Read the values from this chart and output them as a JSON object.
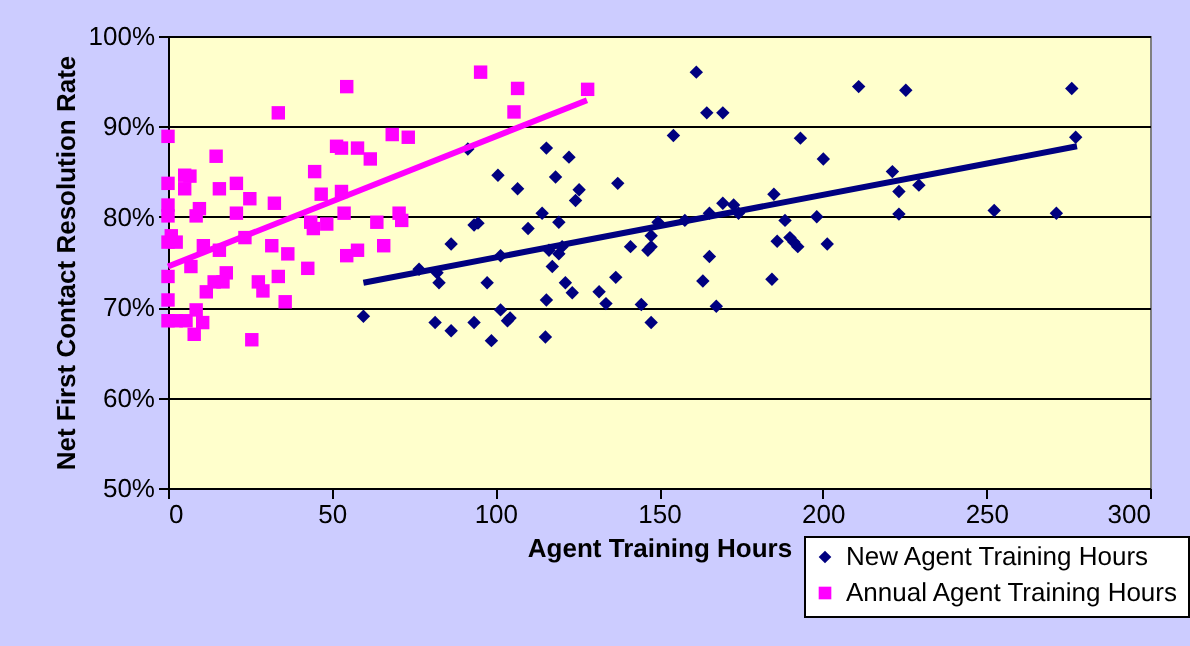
{
  "chart_data": {
    "type": "scatter",
    "xlabel": "Agent Training Hours",
    "ylabel": "Net First Contact Resolution Rate",
    "xlim": [
      0,
      300
    ],
    "xticks": [
      0,
      50,
      100,
      150,
      200,
      250,
      300
    ],
    "ylim": [
      50,
      100
    ],
    "yticks": [
      {
        "value": 50,
        "label": "50%"
      },
      {
        "value": 60,
        "label": "60%"
      },
      {
        "value": 70,
        "label": "70%"
      },
      {
        "value": 80,
        "label": "80%"
      },
      {
        "value": 90,
        "label": "90%"
      },
      {
        "value": 100,
        "label": "100%"
      }
    ],
    "grid": "y",
    "legend": "bottom right",
    "series": [
      {
        "name": "New Agent Training Hours",
        "color": "#000080",
        "marker": "diamond",
        "x": [
          59.7,
          76.7,
          82.2,
          82.8,
          81.6,
          86.5,
          86.5,
          93.5,
          94.7,
          91.6,
          93.5,
          98.8,
          97.5,
          100.8,
          101.6,
          103.7,
          104.5,
          106.8,
          101.6,
          110,
          114.3,
          115.6,
          118.4,
          122.5,
          119.4,
          125.6,
          124.5,
          116.4,
          119.4,
          120.4,
          117.4,
          121.4,
          123.5,
          115.6,
          115.3,
          131.7,
          133.8,
          136.8,
          137.4,
          141.3,
          144.6,
          147.6,
          146.6,
          147.6,
          147.6,
          149.7,
          154.4,
          157.9,
          161.4,
          163.4,
          165.4,
          164.6,
          169.5,
          167.5,
          165.4,
          169.5,
          172.8,
          174.3,
          184.5,
          185.1,
          188.5,
          186.1,
          190,
          191.2,
          192.4,
          193.2,
          198.2,
          200.2,
          201.4,
          211,
          225.4,
          221.3,
          223.3,
          223.3,
          229.4,
          252.4,
          271.4,
          276.1,
          277.3
        ],
        "values": [
          69.0,
          74.2,
          73.8,
          72.7,
          68.3,
          67.4,
          77.0,
          79.1,
          79.3,
          87.5,
          68.3,
          66.3,
          72.7,
          84.6,
          69.7,
          68.5,
          68.8,
          83.1,
          75.7,
          78.7,
          80.4,
          87.6,
          84.4,
          86.6,
          79.4,
          83.0,
          81.8,
          76.3,
          75.9,
          76.7,
          74.5,
          72.7,
          71.6,
          70.8,
          66.7,
          71.7,
          70.4,
          73.3,
          83.7,
          76.7,
          70.3,
          68.3,
          76.3,
          76.7,
          77.9,
          79.4,
          89.0,
          79.6,
          96.0,
          72.9,
          75.6,
          91.5,
          91.5,
          70.1,
          80.4,
          81.5,
          81.3,
          80.4,
          73.1,
          82.5,
          79.6,
          77.3,
          77.7,
          77.2,
          76.7,
          88.7,
          80.0,
          86.4,
          77.0,
          94.4,
          94.0,
          85.0,
          82.8,
          80.3,
          83.5,
          80.7,
          80.4,
          94.2,
          88.8
        ]
      },
      {
        "name": "Annual Agent Training Hours",
        "color": "#ff00ff",
        "marker": "square",
        "x": [
          0,
          0,
          0,
          0,
          1,
          2.5,
          0,
          0,
          0,
          0,
          2.5,
          5.5,
          8.6,
          8,
          10.6,
          5.1,
          6.7,
          5.1,
          14.7,
          15.7,
          20.9,
          25,
          20.9,
          9.6,
          8.6,
          10.8,
          15.7,
          7,
          17.8,
          14.1,
          16.8,
          11.7,
          23.5,
          25.6,
          27.6,
          29,
          31.7,
          32.5,
          33.7,
          33.7,
          35.8,
          36.6,
          42.7,
          43.6,
          44.4,
          48.5,
          44.8,
          46.8,
          51.5,
          53,
          53,
          53.8,
          54.6,
          54.6,
          57.9,
          57.9,
          61.8,
          63.8,
          65.9,
          68.5,
          73.4,
          70.6,
          71.4,
          95.5,
          105.7,
          106.8,
          128.2
        ],
        "values": [
          88.9,
          83.7,
          81.3,
          80.1,
          77.9,
          77.2,
          77.2,
          73.4,
          70.8,
          68.5,
          68.5,
          68.5,
          69.7,
          67.0,
          68.3,
          84.6,
          84.5,
          83.1,
          86.7,
          83.1,
          83.7,
          82.0,
          80.4,
          80.9,
          80.1,
          76.8,
          76.3,
          74.5,
          73.8,
          72.8,
          72.8,
          71.7,
          77.7,
          66.4,
          72.8,
          71.8,
          76.8,
          81.5,
          91.5,
          73.4,
          70.6,
          75.9,
          74.3,
          79.4,
          78.7,
          79.2,
          85.0,
          82.5,
          87.8,
          87.6,
          82.8,
          80.4,
          94.4,
          75.7,
          76.3,
          87.6,
          86.4,
          79.4,
          76.8,
          89.1,
          88.8,
          80.4,
          79.6,
          96.0,
          91.6,
          94.2,
          94.1
        ]
      },
      {
        "type": "line",
        "color": "#000080",
        "marker": "none",
        "line_style": "solid",
        "x": [
          59.7,
          277.7
        ],
        "values": [
          72.7,
          87.8
        ]
      },
      {
        "type": "line",
        "color": "#ff00ff",
        "marker": "none",
        "line_style": "solid",
        "x": [
          0,
          128
        ],
        "values": [
          74.5,
          92.9
        ]
      }
    ]
  }
}
